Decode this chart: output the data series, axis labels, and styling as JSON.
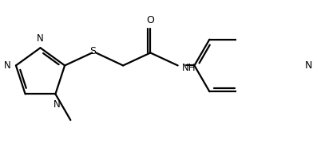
{
  "bg_color": "#ffffff",
  "line_color": "#000000",
  "lw": 1.6,
  "figsize": [
    3.92,
    1.8
  ],
  "dpi": 100,
  "xlim": [
    0.0,
    7.8
  ],
  "ylim": [
    0.0,
    3.6
  ]
}
